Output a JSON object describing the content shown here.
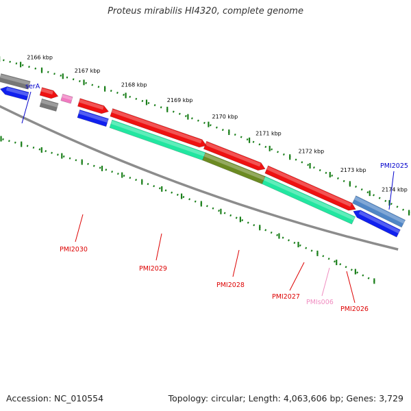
{
  "title": "Proteus mirabilis HI4320, complete genome",
  "footer": {
    "accession": "Accession: NC_010554",
    "summary": "Topology: circular; Length: 4,063,606 bp; Genes: 3,729"
  },
  "colors": {
    "tick": "#1a7f1a",
    "backbone": "#8c8c8c",
    "label_red": "#dd0000",
    "label_blue": "#0000cc",
    "label_pink": "#f08cc0",
    "red": "#ee1111",
    "blue": "#1020ee",
    "teal": "#22e6a0",
    "olive": "#6b8a22",
    "gray": "#777777",
    "steel": "#4f86c6",
    "pink": "#f07ac0"
  },
  "scale_labels": [
    "2174 kbp",
    "2173 kbp",
    "2172 kbp",
    "2171 kbp",
    "2170 kbp",
    "2169 kbp",
    "2168 kbp",
    "2167 kbp",
    "2166 kbp"
  ],
  "gene_labels": [
    {
      "text": "serA",
      "color": "blue"
    },
    {
      "text": "PMI2025",
      "color": "blue"
    },
    {
      "text": "PMI2030",
      "color": "red"
    },
    {
      "text": "PMI2029",
      "color": "red"
    },
    {
      "text": "PMI2028",
      "color": "red"
    },
    {
      "text": "PMI2027",
      "color": "red"
    },
    {
      "text": "PMIs006",
      "color": "pink"
    },
    {
      "text": "PMI2026",
      "color": "red"
    }
  ]
}
